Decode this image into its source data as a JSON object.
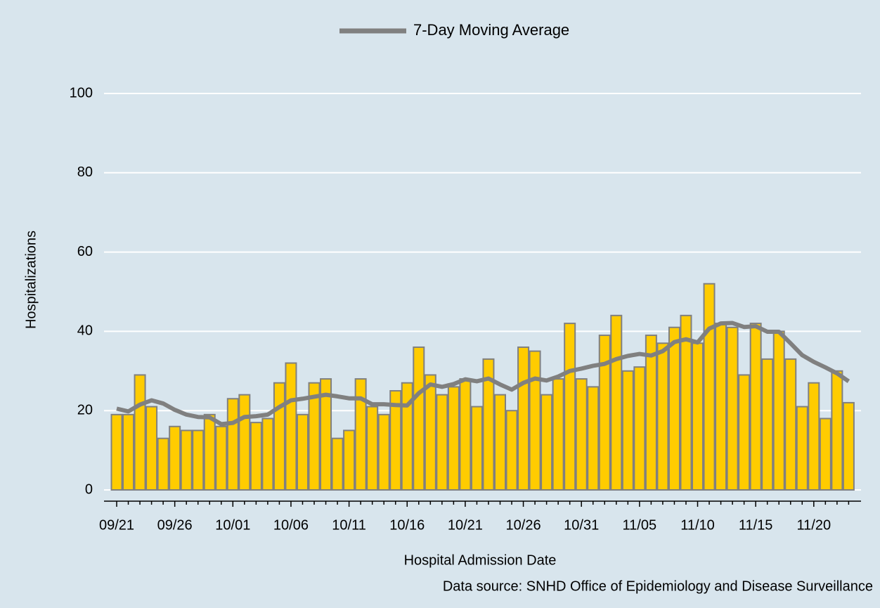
{
  "chart_data": {
    "type": "bar",
    "x_label": "Hospital Admission Date",
    "y_label": "Hospitalizations",
    "source": "Data source: SNHD Office of Epidemiology and Disease Surveillance",
    "categories": [
      "09/21",
      null,
      null,
      null,
      null,
      "09/26",
      null,
      null,
      null,
      null,
      "10/01",
      null,
      null,
      null,
      null,
      "10/06",
      null,
      null,
      null,
      null,
      "10/11",
      null,
      null,
      null,
      null,
      "10/16",
      null,
      null,
      null,
      null,
      "10/21",
      null,
      null,
      null,
      null,
      "10/26",
      null,
      null,
      null,
      null,
      "10/31",
      null,
      null,
      null,
      null,
      "11/05",
      null,
      null,
      null,
      null,
      "11/10",
      null,
      null,
      null,
      null,
      "11/15",
      null,
      null,
      null,
      null,
      "11/20",
      null,
      null,
      null
    ],
    "values": [
      19,
      19,
      29,
      21,
      13,
      16,
      15,
      15,
      19,
      16,
      23,
      24,
      17,
      18,
      27,
      32,
      19,
      27,
      28,
      13,
      15,
      28,
      21,
      19,
      25,
      27,
      36,
      29,
      24,
      26,
      28,
      21,
      33,
      24,
      20,
      36,
      35,
      24,
      28,
      42,
      28,
      26,
      39,
      44,
      30,
      31,
      39,
      37,
      41,
      44,
      37,
      52,
      42,
      41,
      29,
      42,
      33,
      40,
      33,
      21,
      27,
      18,
      30,
      22
    ],
    "color": "#ffcc00",
    "series": [
      {
        "name": "7-Day Moving Average",
        "color": "#808080",
        "type": "line",
        "values": [
          20.5,
          19.8,
          21.5,
          22.6,
          21.8,
          20.2,
          19,
          18.4,
          18.3,
          16.6,
          16.9,
          18.4,
          18.6,
          19,
          20.9,
          22.6,
          23,
          23.5,
          24,
          23.6,
          23.1,
          23.1,
          21.6,
          21.6,
          21.4,
          21.3,
          24.4,
          26.6,
          26,
          26.7,
          27.9,
          27.4,
          28.1,
          26.6,
          25.3,
          27,
          28.1,
          27.6,
          28.6,
          30,
          30.6,
          31.3,
          31.8,
          33,
          33.8,
          34.3,
          33.9,
          35,
          37.3,
          38,
          37.2,
          40.7,
          42,
          42.1,
          41.1,
          41.3,
          39.9,
          39.9,
          37,
          34,
          32.3,
          30.9,
          29.4,
          27.4
        ]
      }
    ],
    "ylim": [
      0,
      100
    ],
    "yticks": [
      0,
      20,
      40,
      60,
      80,
      100
    ],
    "grid": true,
    "legend": "top"
  }
}
